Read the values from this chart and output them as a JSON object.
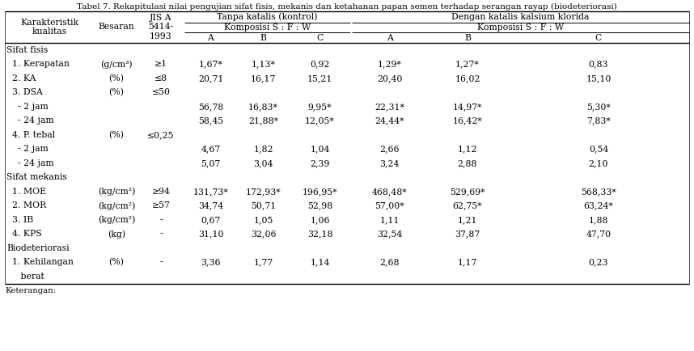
{
  "title": "Tabel 7. Rekapitulasi nilai pengujian sifat fisis, mekanis dan ketahanan papan semen terhadap serangan rayap (biodeteriorasi)",
  "rows": [
    {
      "label": "Sifat fisis",
      "type": "section",
      "besaran": "",
      "jis": "",
      "data": [
        "",
        "",
        "",
        "",
        "",
        ""
      ]
    },
    {
      "label": "  1. Kerapatan",
      "type": "data",
      "besaran": "(g/cm³)",
      "jis": "≥1",
      "data": [
        "1,67*",
        "1,13*",
        "0,92",
        "1,29*",
        "1,27*",
        "0,83"
      ]
    },
    {
      "label": "  2. KA",
      "type": "data",
      "besaran": "(%)",
      "jis": "≤8",
      "data": [
        "20,71",
        "16,17",
        "15,21",
        "20,40",
        "16,02",
        "15,10"
      ]
    },
    {
      "label": "  3. DSA",
      "type": "data",
      "besaran": "(%)",
      "jis": "≤50",
      "data": [
        "",
        "",
        "",
        "",
        "",
        ""
      ]
    },
    {
      "label": "    - 2 jam",
      "type": "data",
      "besaran": "",
      "jis": "",
      "data": [
        "56,78",
        "16,83*",
        "9,95*",
        "22,31*",
        "14,97*",
        "5,30*"
      ]
    },
    {
      "label": "    - 24 jam",
      "type": "data",
      "besaran": "",
      "jis": "",
      "data": [
        "58,45",
        "21,88*",
        "12,05*",
        "24,44*",
        "16,42*",
        "7,83*"
      ]
    },
    {
      "label": "  4. P. tebal",
      "type": "data",
      "besaran": "(%)",
      "jis": "≤0,25",
      "data": [
        "",
        "",
        "",
        "",
        "",
        ""
      ]
    },
    {
      "label": "    - 2 jam",
      "type": "data",
      "besaran": "",
      "jis": "",
      "data": [
        "4,67",
        "1,82",
        "1,04",
        "2,66",
        "1,12",
        "0,54"
      ]
    },
    {
      "label": "    - 24 jam",
      "type": "data",
      "besaran": "",
      "jis": "",
      "data": [
        "5,07",
        "3,04",
        "2,39",
        "3,24",
        "2,88",
        "2,10"
      ]
    },
    {
      "label": "Sifat mekanis",
      "type": "section",
      "besaran": "",
      "jis": "",
      "data": [
        "",
        "",
        "",
        "",
        "",
        ""
      ]
    },
    {
      "label": "  1. MOE",
      "type": "data",
      "besaran": "(kg/cm²)",
      "jis": "≥94",
      "data": [
        "131,73*",
        "172,93*",
        "196,95*",
        "468,48*",
        "529,69*",
        "568,33*"
      ]
    },
    {
      "label": "  2. MOR",
      "type": "data",
      "besaran": "(kg/cm²)",
      "jis": "≥57",
      "data": [
        "34,74",
        "50,71",
        "52,98",
        "57,00*",
        "62,75*",
        "63,24*"
      ]
    },
    {
      "label": "  3. IB",
      "type": "data",
      "besaran": "(kg/cm²)",
      "jis": "-",
      "data": [
        "0,67",
        "1,05",
        "1,06",
        "1,11",
        "1,21",
        "1,88"
      ]
    },
    {
      "label": "  4. KPS",
      "type": "data",
      "besaran": "(kg)",
      "jis": "-",
      "data": [
        "31,10",
        "32,06",
        "32,18",
        "32,54",
        "37,87",
        "47,70"
      ]
    },
    {
      "label": "Biodeteriorasi",
      "type": "section",
      "besaran": "",
      "jis": "",
      "data": [
        "",
        "",
        "",
        "",
        "",
        ""
      ]
    },
    {
      "label": "  1. Kehilangan",
      "type": "data",
      "besaran": "(%)",
      "jis": "-",
      "data": [
        "3,36",
        "1,77",
        "1,14",
        "2,68",
        "1,17",
        "0,23"
      ]
    },
    {
      "label": "     berat",
      "type": "continuation",
      "besaran": "",
      "jis": "",
      "data": [
        "",
        "",
        "",
        "",
        "",
        ""
      ]
    }
  ],
  "footer": "Keterangan:",
  "bg_color": "#ffffff",
  "text_color": "#000000",
  "font_size": 7.8,
  "title_font_size": 7.5
}
